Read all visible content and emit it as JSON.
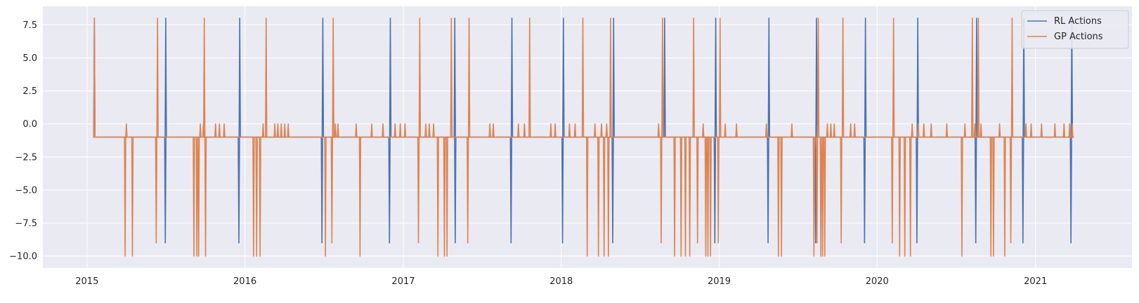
{
  "chart_data": {
    "type": "line",
    "title": "",
    "xlabel": "",
    "ylabel": "",
    "xlim": [
      "2014-09-21",
      "2021-08-12"
    ],
    "ylim": [
      -10.9,
      8.9
    ],
    "x_ticks": [
      "2015",
      "2016",
      "2017",
      "2018",
      "2019",
      "2020",
      "2021"
    ],
    "y_ticks": [
      "7.5",
      "5.0",
      "2.5",
      "0.0",
      "−2.5",
      "−5.0",
      "−7.5",
      "−10.0"
    ],
    "grid": true,
    "legend_position": "top-right",
    "colors": {
      "background": "#eaeaf2",
      "grid": "#ffffff",
      "rl": "#4c72b0",
      "gp": "#dd8452"
    },
    "series": [
      {
        "name": "RL Actions",
        "baseline": -1,
        "x_start": "2015-01-15",
        "x_end": "2021-03-31",
        "events": [
          {
            "date": "2015-01-18",
            "value": 8
          },
          {
            "date": "2015-07-02",
            "value": 8
          },
          {
            "date": "2015-07-01",
            "value": -9
          },
          {
            "date": "2015-12-20",
            "value": 8
          },
          {
            "date": "2015-12-18",
            "value": -9
          },
          {
            "date": "2016-06-29",
            "value": 8
          },
          {
            "date": "2016-06-27",
            "value": -9
          },
          {
            "date": "2016-12-02",
            "value": 8
          },
          {
            "date": "2016-11-30",
            "value": -9
          },
          {
            "date": "2017-04-30",
            "value": 8
          },
          {
            "date": "2017-05-01",
            "value": -9
          },
          {
            "date": "2017-09-09",
            "value": 8
          },
          {
            "date": "2017-09-07",
            "value": -9
          },
          {
            "date": "2018-01-06",
            "value": 8
          },
          {
            "date": "2018-01-04",
            "value": -9
          },
          {
            "date": "2018-05-02",
            "value": 8
          },
          {
            "date": "2018-04-30",
            "value": -9
          },
          {
            "date": "2018-08-28",
            "value": 8
          },
          {
            "date": "2018-12-24",
            "value": 8
          },
          {
            "date": "2018-12-22",
            "value": -9
          },
          {
            "date": "2019-04-26",
            "value": 8
          },
          {
            "date": "2019-04-24",
            "value": -9
          },
          {
            "date": "2019-08-14",
            "value": 8
          },
          {
            "date": "2019-08-12",
            "value": -9
          },
          {
            "date": "2019-12-05",
            "value": 8
          },
          {
            "date": "2019-12-03",
            "value": -9
          },
          {
            "date": "2020-04-04",
            "value": 8
          },
          {
            "date": "2020-04-02",
            "value": -9
          },
          {
            "date": "2020-08-18",
            "value": 8
          },
          {
            "date": "2020-08-16",
            "value": -9
          },
          {
            "date": "2020-12-05",
            "value": 8
          },
          {
            "date": "2020-12-03",
            "value": -9
          },
          {
            "date": "2021-03-26",
            "value": 8
          },
          {
            "date": "2021-03-24",
            "value": -9
          }
        ]
      },
      {
        "name": "GP Actions",
        "baseline": -1,
        "x_start": "2015-01-15",
        "x_end": "2021-03-31",
        "events": [
          {
            "date": "2015-01-18",
            "value": 8
          },
          {
            "date": "2015-03-30",
            "value": -10
          },
          {
            "date": "2015-04-02",
            "value": 0
          },
          {
            "date": "2015-04-16",
            "value": -10
          },
          {
            "date": "2015-06-10",
            "value": -9
          },
          {
            "date": "2015-06-13",
            "value": 8
          },
          {
            "date": "2015-08-26",
            "value": -1
          },
          {
            "date": "2015-09-05",
            "value": -10
          },
          {
            "date": "2015-09-12",
            "value": -10
          },
          {
            "date": "2015-09-16",
            "value": -10
          },
          {
            "date": "2015-09-20",
            "value": 0
          },
          {
            "date": "2015-09-27",
            "value": 0
          },
          {
            "date": "2015-09-29",
            "value": 8
          },
          {
            "date": "2015-10-02",
            "value": -10
          },
          {
            "date": "2015-10-25",
            "value": 0
          },
          {
            "date": "2015-11-03",
            "value": 0
          },
          {
            "date": "2015-11-14",
            "value": 0
          },
          {
            "date": "2016-01-21",
            "value": -10
          },
          {
            "date": "2016-01-28",
            "value": -10
          },
          {
            "date": "2016-02-05",
            "value": -10
          },
          {
            "date": "2016-02-12",
            "value": 0
          },
          {
            "date": "2016-02-19",
            "value": 8
          },
          {
            "date": "2016-03-10",
            "value": 0
          },
          {
            "date": "2016-03-17",
            "value": 0
          },
          {
            "date": "2016-03-25",
            "value": 0
          },
          {
            "date": "2016-04-02",
            "value": 0
          },
          {
            "date": "2016-04-10",
            "value": 0
          },
          {
            "date": "2016-07-05",
            "value": -10
          },
          {
            "date": "2016-07-20",
            "value": -9
          },
          {
            "date": "2016-07-23",
            "value": 8
          },
          {
            "date": "2016-07-28",
            "value": 0
          },
          {
            "date": "2016-08-03",
            "value": 0
          },
          {
            "date": "2016-09-14",
            "value": 0
          },
          {
            "date": "2016-09-23",
            "value": -10
          },
          {
            "date": "2016-10-20",
            "value": 0
          },
          {
            "date": "2016-11-15",
            "value": 0
          },
          {
            "date": "2016-12-13",
            "value": 0
          },
          {
            "date": "2016-12-25",
            "value": 0
          },
          {
            "date": "2017-01-05",
            "value": 0
          },
          {
            "date": "2017-02-05",
            "value": -9
          },
          {
            "date": "2017-02-08",
            "value": 8
          },
          {
            "date": "2017-02-22",
            "value": 0
          },
          {
            "date": "2017-03-02",
            "value": 0
          },
          {
            "date": "2017-03-12",
            "value": 0
          },
          {
            "date": "2017-03-22",
            "value": -10
          },
          {
            "date": "2017-04-06",
            "value": -10
          },
          {
            "date": "2017-04-12",
            "value": -10
          },
          {
            "date": "2017-04-22",
            "value": 8
          },
          {
            "date": "2017-05-30",
            "value": -9
          },
          {
            "date": "2017-06-02",
            "value": 8
          },
          {
            "date": "2017-07-20",
            "value": 0
          },
          {
            "date": "2017-07-28",
            "value": 0
          },
          {
            "date": "2017-09-24",
            "value": 0
          },
          {
            "date": "2017-10-08",
            "value": 0
          },
          {
            "date": "2017-10-20",
            "value": 8
          },
          {
            "date": "2017-12-08",
            "value": 0
          },
          {
            "date": "2017-12-18",
            "value": 0
          },
          {
            "date": "2018-01-20",
            "value": 0
          },
          {
            "date": "2018-02-02",
            "value": 0
          },
          {
            "date": "2018-02-20",
            "value": 8
          },
          {
            "date": "2018-03-02",
            "value": -10
          },
          {
            "date": "2018-03-20",
            "value": 0
          },
          {
            "date": "2018-03-28",
            "value": -10
          },
          {
            "date": "2018-04-04",
            "value": 0
          },
          {
            "date": "2018-04-10",
            "value": -10
          },
          {
            "date": "2018-04-16",
            "value": 0
          },
          {
            "date": "2018-04-20",
            "value": -10
          },
          {
            "date": "2018-04-25",
            "value": 8
          },
          {
            "date": "2018-08-14",
            "value": 0
          },
          {
            "date": "2018-08-20",
            "value": -9
          },
          {
            "date": "2018-08-23",
            "value": 8
          },
          {
            "date": "2018-09-20",
            "value": -10
          },
          {
            "date": "2018-10-05",
            "value": -10
          },
          {
            "date": "2018-10-15",
            "value": -10
          },
          {
            "date": "2018-10-25",
            "value": -10
          },
          {
            "date": "2018-11-03",
            "value": 8
          },
          {
            "date": "2018-11-12",
            "value": -9
          },
          {
            "date": "2018-11-25",
            "value": 0
          },
          {
            "date": "2018-12-01",
            "value": -10
          },
          {
            "date": "2018-12-06",
            "value": -10
          },
          {
            "date": "2018-12-12",
            "value": -10
          },
          {
            "date": "2018-12-30",
            "value": -9
          },
          {
            "date": "2019-01-03",
            "value": 8
          },
          {
            "date": "2019-01-15",
            "value": 0
          },
          {
            "date": "2019-02-10",
            "value": 0
          },
          {
            "date": "2019-04-20",
            "value": 0
          },
          {
            "date": "2019-05-18",
            "value": -10
          },
          {
            "date": "2019-05-25",
            "value": -10
          },
          {
            "date": "2019-06-18",
            "value": 0
          },
          {
            "date": "2019-08-08",
            "value": -10
          },
          {
            "date": "2019-08-15",
            "value": -9
          },
          {
            "date": "2019-08-18",
            "value": 8
          },
          {
            "date": "2019-08-24",
            "value": -10
          },
          {
            "date": "2019-08-28",
            "value": -10
          },
          {
            "date": "2019-09-02",
            "value": -10
          },
          {
            "date": "2019-09-08",
            "value": 0
          },
          {
            "date": "2019-09-16",
            "value": 0
          },
          {
            "date": "2019-09-24",
            "value": 0
          },
          {
            "date": "2019-10-10",
            "value": -9
          },
          {
            "date": "2019-10-14",
            "value": 8
          },
          {
            "date": "2019-11-01",
            "value": 0
          },
          {
            "date": "2019-11-10",
            "value": 0
          },
          {
            "date": "2020-02-05",
            "value": -9
          },
          {
            "date": "2020-02-08",
            "value": 8
          },
          {
            "date": "2020-02-22",
            "value": -10
          },
          {
            "date": "2020-03-05",
            "value": -10
          },
          {
            "date": "2020-03-18",
            "value": -10
          },
          {
            "date": "2020-03-22",
            "value": 0
          },
          {
            "date": "2020-04-05",
            "value": 0
          },
          {
            "date": "2020-04-18",
            "value": 0
          },
          {
            "date": "2020-05-05",
            "value": 0
          },
          {
            "date": "2020-06-10",
            "value": 0
          },
          {
            "date": "2020-07-15",
            "value": -10
          },
          {
            "date": "2020-07-22",
            "value": 0
          },
          {
            "date": "2020-08-08",
            "value": 8
          },
          {
            "date": "2020-08-14",
            "value": 0
          },
          {
            "date": "2020-08-22",
            "value": 8
          },
          {
            "date": "2020-08-28",
            "value": 0
          },
          {
            "date": "2020-09-20",
            "value": -10
          },
          {
            "date": "2020-09-26",
            "value": -10
          },
          {
            "date": "2020-10-10",
            "value": 0
          },
          {
            "date": "2020-10-22",
            "value": -10
          },
          {
            "date": "2020-11-05",
            "value": -9
          },
          {
            "date": "2020-11-08",
            "value": 8
          },
          {
            "date": "2020-12-10",
            "value": 0
          },
          {
            "date": "2020-12-22",
            "value": 0
          },
          {
            "date": "2021-01-15",
            "value": 0
          },
          {
            "date": "2021-02-15",
            "value": 0
          },
          {
            "date": "2021-03-08",
            "value": 0
          },
          {
            "date": "2021-03-21",
            "value": 0
          },
          {
            "date": "2021-03-27",
            "value": 0
          }
        ]
      }
    ]
  }
}
